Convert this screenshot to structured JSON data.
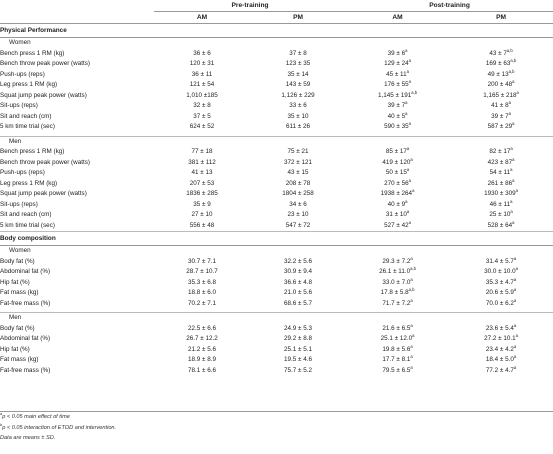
{
  "columns": {
    "group_pre": "Pre-training",
    "group_post": "Post-training",
    "pre_am": "AM",
    "pre_pm": "PM",
    "post_am": "AM",
    "post_pm": "PM"
  },
  "sections": [
    {
      "title": "Physical Performance",
      "groups": [
        {
          "label": "Women",
          "rows": [
            {
              "label": "Bench press 1 RM (kg)",
              "pre_am": "36 ± 6",
              "pre_pm": "37 ± 8",
              "post_am": "39 ± 6",
              "post_am_sup": "a",
              "post_pm": "43 ± 7",
              "post_pm_sup": "a,b"
            },
            {
              "label": "Bench throw peak power (watts)",
              "pre_am": "120 ± 31",
              "pre_pm": "123 ± 35",
              "post_am": "129 ± 24",
              "post_am_sup": "a",
              "post_pm": "169 ± 63",
              "post_pm_sup": "a,b"
            },
            {
              "label": "Push-ups (reps)",
              "pre_am": "36 ± 11",
              "pre_pm": "35 ± 14",
              "post_am": "45 ± 11",
              "post_am_sup": "a",
              "post_pm": "49 ± 13",
              "post_pm_sup": "a,b"
            },
            {
              "label": "Leg press 1 RM (kg)",
              "pre_am": "121 ± 54",
              "pre_pm": "143 ± 59",
              "post_am": "176 ± 55",
              "post_am_sup": "a",
              "post_pm": "200 ± 48",
              "post_pm_sup": "a"
            },
            {
              "label": "Squat jump peak power (watts)",
              "pre_am": "1,010 ±185",
              "pre_pm": "1,126 ± 229",
              "post_am": "1,145 ± 191",
              "post_am_sup": "a,b",
              "post_pm": "1,165 ± 218",
              "post_pm_sup": "a"
            },
            {
              "label": "Sit-ups (reps)",
              "pre_am": "32 ± 8",
              "pre_pm": "33 ± 6",
              "post_am": "39 ± 7",
              "post_am_sup": "a",
              "post_pm": "41 ± 8",
              "post_pm_sup": "a"
            },
            {
              "label": "Sit and reach (cm)",
              "pre_am": "37 ± 5",
              "pre_pm": "35 ± 10",
              "post_am": "40 ± 5",
              "post_am_sup": "a",
              "post_pm": "39 ± 7",
              "post_pm_sup": "a"
            },
            {
              "label": "5 km time trial (sec)",
              "pre_am": "624 ± 52",
              "pre_pm": "611 ± 26",
              "post_am": "590 ± 35",
              "post_am_sup": "a",
              "post_pm": "587 ± 29",
              "post_pm_sup": "a"
            }
          ]
        },
        {
          "label": "Men",
          "rows": [
            {
              "label": "Bench press 1 RM (kg)",
              "pre_am": "77 ± 18",
              "pre_pm": "75 ± 21",
              "post_am": "85 ± 17",
              "post_am_sup": "a",
              "post_pm": "82 ± 17",
              "post_pm_sup": "a"
            },
            {
              "label": "Bench throw peak power (watts)",
              "pre_am": "381 ± 112",
              "pre_pm": "372 ± 121",
              "post_am": "419 ± 120",
              "post_am_sup": "a",
              "post_pm": "423 ± 87",
              "post_pm_sup": "a"
            },
            {
              "label": "Push-ups (reps)",
              "pre_am": "41 ± 13",
              "pre_pm": "43 ± 15",
              "post_am": "50 ± 15",
              "post_am_sup": "a",
              "post_pm": "54 ± 11",
              "post_pm_sup": "a"
            },
            {
              "label": "Leg press 1 RM (kg)",
              "pre_am": "207 ± 53",
              "pre_pm": "208 ± 78",
              "post_am": "270 ± 56",
              "post_am_sup": "a",
              "post_pm": "261 ± 86",
              "post_pm_sup": "a"
            },
            {
              "label": "Squat jump peak power (watts)",
              "pre_am": "1836 ± 285",
              "pre_pm": "1804 ± 258",
              "post_am": "1938 ± 264",
              "post_am_sup": "a",
              "post_pm": "1930 ± 309",
              "post_pm_sup": "a"
            },
            {
              "label": "Sit-ups (reps)",
              "pre_am": "35 ± 9",
              "pre_pm": "34 ± 6",
              "post_am": "40 ± 9",
              "post_am_sup": "a",
              "post_pm": "46 ± 11",
              "post_pm_sup": "a"
            },
            {
              "label": "Sit and reach (cm)",
              "pre_am": "27 ± 10",
              "pre_pm": "23 ± 10",
              "post_am": "31 ± 10",
              "post_am_sup": "a",
              "post_pm": "25 ± 10",
              "post_pm_sup": "a"
            },
            {
              "label": "5 km time trial (sec)",
              "pre_am": "556 ± 48",
              "pre_pm": "547 ± 72",
              "post_am": "527 ± 42",
              "post_am_sup": "a",
              "post_pm": "528 ± 64",
              "post_pm_sup": "a"
            }
          ]
        }
      ]
    },
    {
      "title": "Body composition",
      "groups": [
        {
          "label": "Women",
          "rows": [
            {
              "label": "Body fat (%)",
              "pre_am": "30.7 ± 7.1",
              "pre_pm": "32.2 ± 5.6",
              "post_am": "29.3 ± 7.2",
              "post_am_sup": "a",
              "post_pm": "31.4 ± 5.7",
              "post_pm_sup": "a"
            },
            {
              "label": "Abdominal fat (%)",
              "pre_am": "28.7 ± 10.7",
              "pre_pm": "30.9 ± 9.4",
              "post_am": "26.1 ± 11.0",
              "post_am_sup": "a,b",
              "post_pm": "30.0 ± 10.0",
              "post_pm_sup": "a"
            },
            {
              "label": "Hip fat (%)",
              "pre_am": "35.3 ± 6.8",
              "pre_pm": "36.6 ± 4.8",
              "post_am": "33.0 ± 7.0",
              "post_am_sup": "a",
              "post_pm": "35.3 ± 4.7",
              "post_pm_sup": "a"
            },
            {
              "label": "Fat mass (kg)",
              "pre_am": "18.8 ± 6.0",
              "pre_pm": "21.0 ± 5.6",
              "post_am": "17.8 ± 5.8",
              "post_am_sup": "a,b",
              "post_pm": "20.6 ± 5.9",
              "post_pm_sup": "a"
            },
            {
              "label": "Fat-free mass (%)",
              "pre_am": "70.2 ± 7.1",
              "pre_pm": "68.6 ± 5.7",
              "post_am": "71.7 ± 7.2",
              "post_am_sup": "a",
              "post_pm": "70.0 ± 6.2",
              "post_pm_sup": "a"
            }
          ]
        },
        {
          "label": "Men",
          "rows": [
            {
              "label": "Body fat (%)",
              "pre_am": "22.5 ± 6.6",
              "pre_pm": "24.9 ± 5.3",
              "post_am": "21.6 ± 6.5",
              "post_am_sup": "a",
              "post_pm": "23.6 ± 5.4",
              "post_pm_sup": "a"
            },
            {
              "label": "Abdominal fat (%)",
              "pre_am": "26.7 ± 12.2",
              "pre_pm": "29.2 ± 8.8",
              "post_am": "25.1 ± 12.0",
              "post_am_sup": "a",
              "post_pm": "27.2 ± 10.1",
              "post_pm_sup": "a"
            },
            {
              "label": "Hip fat (%)",
              "pre_am": "21.2 ± 5.6",
              "pre_pm": "25.1 ± 5.1",
              "post_am": "19.8 ± 5.6",
              "post_am_sup": "a",
              "post_pm": "23.4 ± 4.2",
              "post_pm_sup": "a"
            },
            {
              "label": "Fat mass (kg)",
              "pre_am": "18.9 ± 8.9",
              "pre_pm": "19.5 ± 4.6",
              "post_am": "17.7 ± 8.1",
              "post_am_sup": "a",
              "post_pm": "18.4 ± 5.0",
              "post_pm_sup": "a"
            },
            {
              "label": "Fat-free mass (%)",
              "pre_am": "78.1 ± 6.6",
              "pre_pm": "75.7 ± 5.2",
              "post_am": "79.5 ± 6.5",
              "post_am_sup": "a",
              "post_pm": "77.2 ± 4.7",
              "post_pm_sup": "a"
            }
          ]
        }
      ]
    }
  ],
  "footnotes": [
    {
      "sup": "a",
      "text": "p < 0.05 main effect of time"
    },
    {
      "sup": "b",
      "text": "p < 0.05 interaction of ETOD and intervention."
    },
    {
      "sup": "",
      "text": "Data are means ± SD."
    }
  ]
}
